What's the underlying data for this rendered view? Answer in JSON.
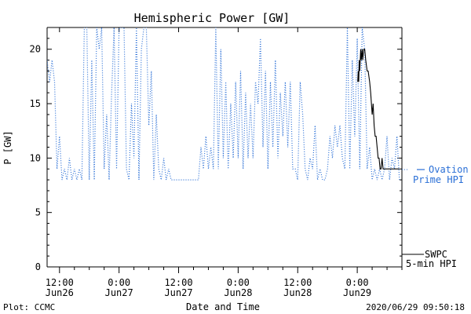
{
  "footer": {
    "left": "Plot: CCMC",
    "right": "2020/06/29 09:50:18"
  },
  "chart_data": {
    "type": "line",
    "title": "Hemispheric Power [GW]",
    "xlabel": "Date and Time",
    "ylabel": "P [GW]",
    "ylim": [
      0,
      22
    ],
    "y_ticks": [
      0,
      5,
      10,
      15,
      20
    ],
    "x_unit": "hours from 2020-06-26 00:00",
    "xlim": [
      9.5,
      81
    ],
    "x_ticks": [
      {
        "x": 12,
        "line1": "12:00",
        "line2": "Jun26"
      },
      {
        "x": 24,
        "line1": "0:00",
        "line2": "Jun27"
      },
      {
        "x": 36,
        "line1": "12:00",
        "line2": "Jun27"
      },
      {
        "x": 48,
        "line1": "0:00",
        "line2": "Jun28"
      },
      {
        "x": 60,
        "line1": "12:00",
        "line2": "Jun28"
      },
      {
        "x": 72,
        "line1": "0:00",
        "line2": "Jun29"
      }
    ],
    "grid": false,
    "colors": {
      "ovation": "#2a6fd6",
      "swpc": "#000000",
      "axis": "#000000"
    },
    "legend": [
      {
        "series": "ovation",
        "line1": "Ovation",
        "line2": "Prime HPI"
      },
      {
        "series": "swpc",
        "line1": "SWPC",
        "line2": "5-min HPI"
      }
    ],
    "series": [
      {
        "name": "Ovation Prime HPI",
        "key": "ovation",
        "style": "dotted",
        "x": [
          9.5,
          10,
          10.5,
          11,
          11.5,
          12,
          12.5,
          13,
          13.5,
          14,
          14.5,
          15,
          15.5,
          16,
          16.5,
          17,
          17.5,
          18,
          18.5,
          19,
          19.5,
          20,
          20.5,
          21,
          21.5,
          22,
          22.5,
          23,
          23.5,
          24,
          24.5,
          25,
          25.5,
          26,
          26.5,
          27,
          27.5,
          28,
          28.5,
          29,
          29.5,
          30,
          30.5,
          31,
          31.5,
          32,
          32.5,
          33,
          33.5,
          34,
          34.5,
          35,
          35.5,
          36,
          36.5,
          37,
          37.5,
          38,
          38.5,
          39,
          39.5,
          40,
          40.5,
          41,
          41.5,
          42,
          42.5,
          43,
          43.5,
          44,
          44.5,
          45,
          45.5,
          46,
          46.5,
          47,
          47.5,
          48,
          48.5,
          49,
          49.5,
          50,
          50.5,
          51,
          51.5,
          52,
          52.5,
          53,
          53.5,
          54,
          54.5,
          55,
          55.5,
          56,
          56.5,
          57,
          57.5,
          58,
          58.5,
          59,
          59.5,
          60,
          60.5,
          61,
          61.5,
          62,
          62.5,
          63,
          63.5,
          64,
          64.5,
          65,
          65.5,
          66,
          66.5,
          67,
          67.5,
          68,
          68.5,
          69,
          69.5,
          70,
          70.5,
          71,
          71.5,
          72,
          72.5,
          73,
          73.5,
          74,
          74.5,
          75,
          75.5,
          76,
          76.5,
          77,
          77.5,
          78,
          78.5,
          79,
          79.5,
          80,
          80.5
        ],
        "y": [
          19,
          17,
          19,
          17,
          9,
          12,
          8,
          9,
          8,
          10,
          8,
          9,
          8,
          9,
          8,
          22,
          22,
          8,
          19,
          8,
          22,
          20,
          22,
          9,
          14,
          8,
          16,
          22,
          9,
          22,
          22,
          22,
          9,
          8,
          15,
          10,
          22,
          8,
          20,
          22,
          22,
          13,
          18,
          8,
          14,
          9,
          8,
          10,
          8,
          9,
          8,
          8,
          8,
          8,
          8,
          8,
          8,
          8,
          8,
          8,
          8,
          8,
          11,
          9,
          12,
          9,
          11,
          9,
          22,
          9,
          20,
          10,
          17,
          9,
          15,
          10,
          17,
          10,
          18,
          9,
          16,
          10,
          15,
          10,
          17,
          15,
          21,
          11,
          18,
          9,
          17,
          11,
          19,
          10,
          16,
          12,
          17,
          11,
          17,
          9,
          9,
          8,
          17,
          14,
          9,
          8,
          10,
          9,
          13,
          8,
          9,
          8,
          8,
          9,
          12,
          10,
          13,
          11,
          13,
          10,
          9,
          22,
          9,
          19,
          12,
          21,
          9,
          22,
          20,
          9,
          11,
          8,
          9,
          8,
          9,
          8,
          9,
          12,
          8,
          10,
          9,
          12,
          8
        ]
      },
      {
        "name": "SWPC 5-min HPI",
        "key": "swpc",
        "style": "solid",
        "x": [
          72.1,
          72.2,
          72.3,
          72.4,
          72.5,
          72.7,
          72.8,
          73.0,
          73.1,
          73.3,
          73.5,
          73.7,
          74.0,
          74.2,
          74.5,
          74.7,
          75.0,
          75.2,
          75.4,
          75.6,
          75.8,
          76.0,
          76.2,
          76.4,
          76.6,
          76.8,
          77.0,
          77.2,
          77.4,
          77.6,
          77.8,
          78.0,
          78.3,
          78.6,
          78.9,
          79.2,
          79.5,
          80.0,
          80.5
        ],
        "y": [
          17,
          18,
          17,
          19,
          18,
          20,
          19,
          20,
          19,
          20,
          20,
          19,
          18,
          18,
          17,
          16,
          14,
          15,
          13,
          12,
          12,
          11,
          10,
          10,
          9,
          9,
          10,
          9,
          9,
          9,
          9,
          9,
          9,
          9,
          9,
          9,
          9,
          9,
          9
        ]
      }
    ]
  }
}
